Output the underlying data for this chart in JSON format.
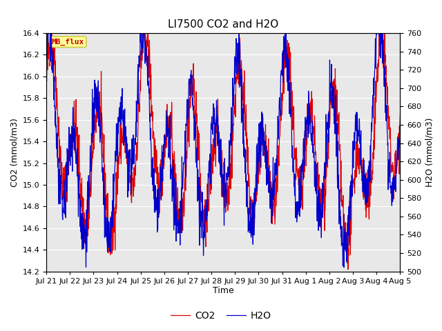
{
  "title": "LI7500 CO2 and H2O",
  "xlabel": "Time",
  "ylabel_left": "CO2 (mmol/m3)",
  "ylabel_right": "H2O (mmol/m3)",
  "ylim_left": [
    14.2,
    16.4
  ],
  "ylim_right": [
    500,
    760
  ],
  "yticks_left": [
    14.2,
    14.4,
    14.6,
    14.8,
    15.0,
    15.2,
    15.4,
    15.6,
    15.8,
    16.0,
    16.2,
    16.4
  ],
  "yticks_right": [
    500,
    520,
    540,
    560,
    580,
    600,
    620,
    640,
    660,
    680,
    700,
    720,
    740,
    760
  ],
  "xtick_labels": [
    "Jul 21",
    "Jul 22",
    "Jul 23",
    "Jul 24",
    "Jul 25",
    "Jul 26",
    "Jul 27",
    "Jul 28",
    "Jul 29",
    "Jul 30",
    "Jul 31",
    "Aug 1",
    "Aug 2",
    "Aug 3",
    "Aug 4",
    "Aug 5"
  ],
  "color_co2": "#dd0000",
  "color_h2o": "#0000cc",
  "fig_bg_color": "#ffffff",
  "plot_bg_color": "#e8e8e8",
  "grid_color": "#ffffff",
  "annotation_text": "MB_flux",
  "annotation_bg": "#ffff99",
  "annotation_border": "#cccc44",
  "annotation_text_color": "#cc0000",
  "legend_co2": "CO2",
  "legend_h2o": "H2O",
  "title_fontsize": 11,
  "axis_label_fontsize": 9,
  "tick_fontsize": 8,
  "legend_fontsize": 10,
  "n_points": 1440,
  "seed": 42
}
